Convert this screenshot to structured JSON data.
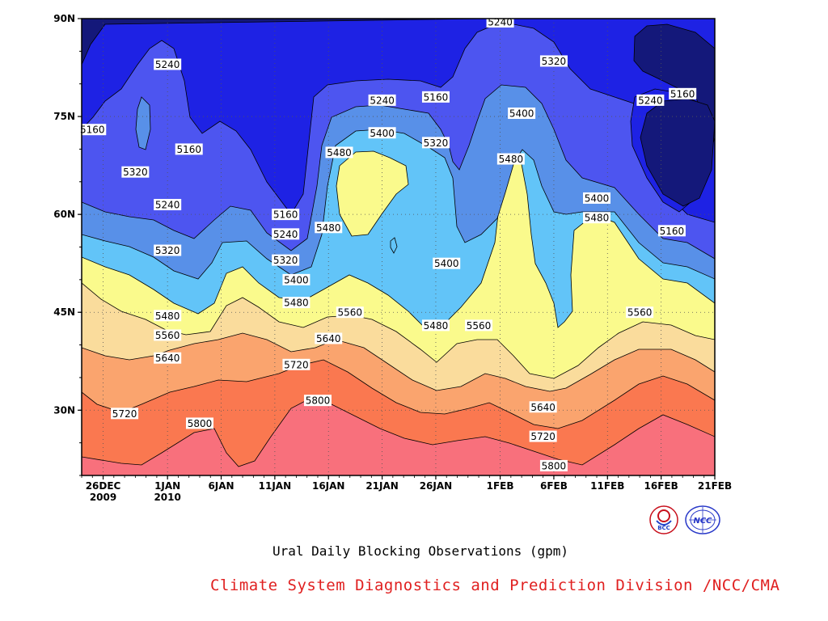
{
  "chart_data": {
    "type": "contour",
    "title": "Ural Daily Blocking Observations (gpm)",
    "y_axis": {
      "ticks": [
        "30N",
        "45N",
        "60N",
        "75N",
        "90N"
      ],
      "values": [
        30,
        45,
        60,
        75,
        90
      ],
      "range": [
        20,
        90
      ]
    },
    "x_axis": {
      "ticks": [
        {
          "label": "26DEC",
          "sub": "2009",
          "date": "2009-12-26"
        },
        {
          "label": "1JAN",
          "sub": "2010",
          "date": "2010-01-01"
        },
        {
          "label": "6JAN",
          "sub": "",
          "date": "2010-01-06"
        },
        {
          "label": "11JAN",
          "sub": "",
          "date": "2010-01-11"
        },
        {
          "label": "16JAN",
          "sub": "",
          "date": "2010-01-16"
        },
        {
          "label": "21JAN",
          "sub": "",
          "date": "2010-01-21"
        },
        {
          "label": "26JAN",
          "sub": "",
          "date": "2010-01-26"
        },
        {
          "label": "1FEB",
          "sub": "",
          "date": "2010-02-01"
        },
        {
          "label": "6FEB",
          "sub": "",
          "date": "2010-02-06"
        },
        {
          "label": "11FEB",
          "sub": "",
          "date": "2010-02-11"
        },
        {
          "label": "16FEB",
          "sub": "",
          "date": "2010-02-16"
        },
        {
          "label": "21FEB",
          "sub": "",
          "date": "2010-02-21"
        }
      ],
      "range": [
        "2009-12-24",
        "2010-02-21"
      ]
    },
    "contour_levels": [
      5160,
      5240,
      5320,
      5400,
      5480,
      5560,
      5640,
      5720,
      5800
    ],
    "fill_colors": [
      "#14187a",
      "#1e22e4",
      "#4d55f0",
      "#5890e8",
      "#62c4f8",
      "#fafa8c",
      "#fadc9c",
      "#faa46e",
      "#fa7850",
      "#f8707c"
    ],
    "grid": "dotted",
    "contour_labels": [
      {
        "value": 5240,
        "date": "2010-02-01",
        "lat": 89.5
      },
      {
        "value": 5240,
        "date": "2010-01-01",
        "lat": 83
      },
      {
        "value": 5320,
        "date": "2010-02-06",
        "lat": 83.5
      },
      {
        "value": 5240,
        "date": "2010-01-21",
        "lat": 77.5
      },
      {
        "value": 5160,
        "date": "2010-01-26",
        "lat": 78
      },
      {
        "value": 5160,
        "date": "2010-02-18",
        "lat": 78.5
      },
      {
        "value": 5240,
        "date": "2010-02-15",
        "lat": 77.5
      },
      {
        "value": 5400,
        "date": "2010-02-03",
        "lat": 75.5
      },
      {
        "value": 5160,
        "date": "2009-12-25",
        "lat": 73
      },
      {
        "value": 5400,
        "date": "2010-01-21",
        "lat": 72.5
      },
      {
        "value": 5320,
        "date": "2010-01-26",
        "lat": 71
      },
      {
        "value": 5160,
        "date": "2010-01-03",
        "lat": 70
      },
      {
        "value": 5480,
        "date": "2010-01-17",
        "lat": 69.5
      },
      {
        "value": 5480,
        "date": "2010-02-02",
        "lat": 68.5
      },
      {
        "value": 5320,
        "date": "2009-12-29",
        "lat": 66.5
      },
      {
        "value": 5400,
        "date": "2010-02-10",
        "lat": 62.5
      },
      {
        "value": 5240,
        "date": "2010-01-01",
        "lat": 61.5
      },
      {
        "value": 5160,
        "date": "2010-01-12",
        "lat": 60
      },
      {
        "value": 5480,
        "date": "2010-02-10",
        "lat": 59.5
      },
      {
        "value": 5480,
        "date": "2010-01-16",
        "lat": 58
      },
      {
        "value": 5240,
        "date": "2010-01-12",
        "lat": 57
      },
      {
        "value": 5160,
        "date": "2010-02-17",
        "lat": 57.5
      },
      {
        "value": 5320,
        "date": "2010-01-01",
        "lat": 54.5
      },
      {
        "value": 5320,
        "date": "2010-01-12",
        "lat": 53
      },
      {
        "value": 5400,
        "date": "2010-01-27",
        "lat": 52.5
      },
      {
        "value": 5400,
        "date": "2010-01-13",
        "lat": 50
      },
      {
        "value": 5480,
        "date": "2010-01-13",
        "lat": 46.5
      },
      {
        "value": 5560,
        "date": "2010-01-18",
        "lat": 45
      },
      {
        "value": 5480,
        "date": "2010-01-01",
        "lat": 44.5
      },
      {
        "value": 5560,
        "date": "2010-02-14",
        "lat": 45
      },
      {
        "value": 5480,
        "date": "2010-01-26",
        "lat": 43
      },
      {
        "value": 5560,
        "date": "2010-01-30",
        "lat": 43
      },
      {
        "value": 5560,
        "date": "2010-01-01",
        "lat": 41.5
      },
      {
        "value": 5640,
        "date": "2010-01-16",
        "lat": 41
      },
      {
        "value": 5640,
        "date": "2010-01-01",
        "lat": 38
      },
      {
        "value": 5720,
        "date": "2010-01-13",
        "lat": 37
      },
      {
        "value": 5800,
        "date": "2010-01-15",
        "lat": 31.5
      },
      {
        "value": 5640,
        "date": "2010-02-05",
        "lat": 30.5
      },
      {
        "value": 5720,
        "date": "2009-12-28",
        "lat": 29.5
      },
      {
        "value": 5800,
        "date": "2010-01-04",
        "lat": 28
      },
      {
        "value": 5720,
        "date": "2010-02-05",
        "lat": 26
      },
      {
        "value": 5800,
        "date": "2010-02-06",
        "lat": 21.5
      }
    ]
  },
  "caption": "Ural Daily Blocking Observations (gpm)",
  "credit": "Climate System Diagnostics and Prediction Division /NCC/CMA",
  "logos": [
    {
      "name": "bcc-logo",
      "text": "BCC",
      "color": "#c8101c"
    },
    {
      "name": "ncc-logo",
      "text": "NCC",
      "color": "#2838c8"
    }
  ]
}
